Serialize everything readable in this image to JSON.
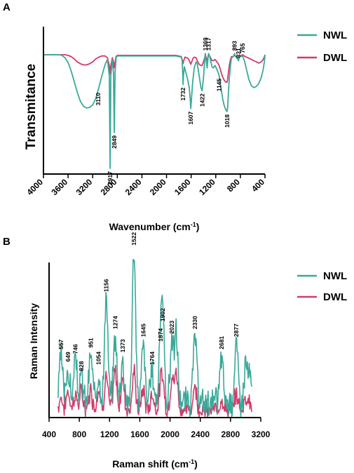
{
  "colors": {
    "NWL": "#3aa99a",
    "DWL": "#d23b6a",
    "axis": "#000000"
  },
  "chart_data": [
    {
      "type": "line",
      "panel_label": "A",
      "xlabel_prefix": "Wavenumber (cm",
      "xlabel_sup": "-1",
      "xlabel_suffix": ")",
      "ylabel": "Transmitance",
      "xlim": [
        4000,
        400
      ],
      "x_reversed": true,
      "xticks": [
        "4000",
        "3600",
        "3200",
        "2800",
        "2400",
        "2000",
        "1600",
        "1200",
        "800",
        "400"
      ],
      "y_axis_ticks": false,
      "legend_position": "right",
      "series": [
        {
          "name": "NWL",
          "x": [
            4000,
            3800,
            3750,
            3700,
            3650,
            3600,
            3550,
            3500,
            3450,
            3400,
            3350,
            3300,
            3250,
            3200,
            3150,
            3100,
            3050,
            3000,
            2960,
            2930,
            2917,
            2905,
            2880,
            2862,
            2849,
            2836,
            2820,
            2800,
            2600,
            2400,
            2200,
            2000,
            1850,
            1760,
            1745,
            1735,
            1732,
            1725,
            1710,
            1690,
            1660,
            1630,
            1615,
            1607,
            1595,
            1575,
            1550,
            1520,
            1500,
            1470,
            1440,
            1422,
            1400,
            1380,
            1369,
            1355,
            1340,
            1325,
            1317,
            1300,
            1280,
            1260,
            1240,
            1210,
            1180,
            1160,
            1145,
            1125,
            1105,
            1085,
            1065,
            1045,
            1030,
            1018,
            1008,
            995,
            980,
            960,
            945,
            925,
            905,
            893,
            880,
            860,
            840,
            831,
            820,
            800,
            780,
            765,
            740,
            700,
            660,
            620,
            580,
            540,
            500,
            460,
            430,
            410,
            400
          ],
          "y": [
            0,
            0,
            0,
            -0.01,
            -0.05,
            -0.13,
            -0.27,
            -0.45,
            -0.63,
            -0.78,
            -0.86,
            -0.89,
            -0.88,
            -0.84,
            -0.73,
            -0.55,
            -0.35,
            -0.17,
            -0.08,
            -0.35,
            -1.9,
            -0.35,
            -0.08,
            -0.3,
            -1.3,
            -0.3,
            -0.05,
            -0.02,
            -0.02,
            -0.02,
            -0.02,
            -0.02,
            -0.02,
            -0.04,
            -0.1,
            -0.35,
            -0.5,
            -0.35,
            -0.2,
            -0.28,
            -0.4,
            -0.55,
            -0.75,
            -0.9,
            -0.75,
            -0.45,
            -0.22,
            -0.12,
            -0.15,
            -0.35,
            -0.55,
            -0.6,
            -0.4,
            -0.1,
            0.02,
            -0.1,
            -0.22,
            -0.05,
            0.02,
            -0.02,
            -0.12,
            -0.2,
            -0.22,
            -0.18,
            -0.25,
            -0.3,
            -0.35,
            -0.5,
            -0.62,
            -0.75,
            -0.84,
            -0.9,
            -0.93,
            -0.95,
            -0.9,
            -0.65,
            -0.4,
            -0.18,
            -0.05,
            -0.04,
            -0.02,
            0.02,
            -0.03,
            -0.05,
            -0.08,
            -0.1,
            -0.05,
            -0.02,
            -0.03,
            -0.02,
            -0.08,
            -0.25,
            -0.42,
            -0.52,
            -0.55,
            -0.53,
            -0.48,
            -0.38,
            -0.25,
            -0.12,
            0
          ]
        },
        {
          "name": "DWL",
          "x": [
            4000,
            3700,
            3650,
            3600,
            3550,
            3500,
            3450,
            3400,
            3350,
            3300,
            3250,
            3200,
            3150,
            3100,
            3050,
            3000,
            2960,
            2930,
            2917,
            2905,
            2880,
            2862,
            2849,
            2836,
            2820,
            2800,
            2600,
            2400,
            2200,
            2000,
            1850,
            1760,
            1735,
            1732,
            1720,
            1700,
            1650,
            1620,
            1607,
            1590,
            1570,
            1550,
            1520,
            1500,
            1470,
            1440,
            1422,
            1400,
            1380,
            1369,
            1355,
            1340,
            1325,
            1317,
            1300,
            1280,
            1260,
            1240,
            1210,
            1180,
            1160,
            1145,
            1125,
            1105,
            1085,
            1065,
            1045,
            1030,
            1018,
            1008,
            995,
            980,
            960,
            945,
            925,
            905,
            893,
            880,
            860,
            840,
            831,
            820,
            800,
            780,
            765,
            740,
            700,
            660,
            620,
            580,
            540,
            500,
            460,
            430,
            410,
            400
          ],
          "y": [
            0,
            0,
            0,
            -0.01,
            -0.03,
            -0.07,
            -0.12,
            -0.15,
            -0.17,
            -0.17,
            -0.15,
            -0.12,
            -0.07,
            -0.04,
            -0.02,
            -0.02,
            -0.05,
            -0.18,
            -0.32,
            -0.18,
            -0.05,
            -0.12,
            -0.22,
            -0.12,
            -0.03,
            -0.01,
            -0.01,
            -0.01,
            -0.01,
            -0.01,
            -0.01,
            -0.03,
            -0.12,
            -0.15,
            -0.1,
            -0.04,
            -0.06,
            -0.12,
            -0.16,
            -0.12,
            -0.06,
            -0.04,
            -0.05,
            -0.1,
            -0.16,
            -0.18,
            -0.18,
            -0.12,
            -0.05,
            0,
            -0.05,
            -0.1,
            -0.03,
            0,
            -0.02,
            -0.06,
            -0.1,
            -0.1,
            -0.08,
            -0.12,
            -0.15,
            -0.18,
            -0.25,
            -0.32,
            -0.38,
            -0.42,
            -0.45,
            -0.46,
            -0.46,
            -0.42,
            -0.3,
            -0.18,
            -0.08,
            -0.03,
            -0.03,
            -0.02,
            0,
            -0.02,
            -0.04,
            -0.06,
            -0.08,
            -0.05,
            -0.02,
            -0.01,
            0,
            -0.02,
            -0.04,
            -0.06,
            -0.08,
            -0.1,
            -0.12,
            -0.14,
            -0.12,
            -0.08,
            -0.04,
            0
          ]
        }
      ],
      "annotations": [
        {
          "text": "3110",
          "x": 3110
        },
        {
          "text": "2917",
          "x": 2917
        },
        {
          "text": "2849",
          "x": 2849
        },
        {
          "text": "1732",
          "x": 1732
        },
        {
          "text": "1607",
          "x": 1607
        },
        {
          "text": "1422",
          "x": 1422
        },
        {
          "text": "1369",
          "x": 1369
        },
        {
          "text": "1317",
          "x": 1317
        },
        {
          "text": "1145",
          "x": 1145
        },
        {
          "text": "1018",
          "x": 1018
        },
        {
          "text": "893",
          "x": 893
        },
        {
          "text": "831",
          "x": 831
        },
        {
          "text": "765",
          "x": 765
        }
      ]
    },
    {
      "type": "line",
      "panel_label": "B",
      "xlabel_prefix": "Raman shift (cm",
      "xlabel_sup": "-1",
      "xlabel_suffix": ")",
      "ylabel": "Raman Intensity",
      "xlim": [
        400,
        3200
      ],
      "ylim": [
        0,
        1
      ],
      "xticks": [
        "400",
        "800",
        "1200",
        "1600",
        "2000",
        "2400",
        "2800",
        "3200"
      ],
      "y_axis_ticks": false,
      "legend_position": "right",
      "series": [
        {
          "name": "NWL",
          "peaks": [
            [
              557,
              0.3
            ],
            [
              649,
              0.22
            ],
            [
              746,
              0.27
            ],
            [
              828,
              0.16
            ],
            [
              951,
              0.31
            ],
            [
              1054,
              0.2
            ],
            [
              1156,
              0.67
            ],
            [
              1274,
              0.43
            ],
            [
              1373,
              0.28
            ],
            [
              1522,
              0.97
            ],
            [
              1645,
              0.38
            ],
            [
              1764,
              0.2
            ],
            [
              1874,
              0.35
            ],
            [
              1902,
              0.48
            ],
            [
              2023,
              0.4
            ],
            [
              2081,
              0.44
            ],
            [
              2330,
              0.43
            ],
            [
              2681,
              0.3
            ],
            [
              2877,
              0.38
            ],
            [
              3000,
              0.24
            ],
            [
              3050,
              0.16
            ]
          ],
          "baseline": 0.1
        },
        {
          "name": "DWL",
          "peaks": [
            [
              557,
              0.08
            ],
            [
              649,
              0.12
            ],
            [
              746,
              0.1
            ],
            [
              828,
              0.11
            ],
            [
              951,
              0.13
            ],
            [
              1054,
              0.14
            ],
            [
              1156,
              0.22
            ],
            [
              1274,
              0.25
            ],
            [
              1373,
              0.2
            ],
            [
              1522,
              0.24
            ],
            [
              1645,
              0.13
            ],
            [
              1764,
              0.1
            ],
            [
              1874,
              0.12
            ],
            [
              1902,
              0.17
            ],
            [
              2023,
              0.19
            ],
            [
              2081,
              0.24
            ],
            [
              2330,
              0.16
            ],
            [
              2681,
              0.08
            ],
            [
              2877,
              0.1
            ],
            [
              3000,
              0.08
            ],
            [
              3050,
              0.05
            ]
          ],
          "baseline": 0.05
        }
      ],
      "annotations": [
        {
          "text": "557",
          "x": 557
        },
        {
          "text": "649",
          "x": 649
        },
        {
          "text": "746",
          "x": 746
        },
        {
          "text": "828",
          "x": 828
        },
        {
          "text": "951",
          "x": 951
        },
        {
          "text": "1054",
          "x": 1054
        },
        {
          "text": "1156",
          "x": 1156
        },
        {
          "text": "1274",
          "x": 1274
        },
        {
          "text": "1373",
          "x": 1373
        },
        {
          "text": "1522",
          "x": 1522
        },
        {
          "text": "1645",
          "x": 1645
        },
        {
          "text": "1764",
          "x": 1764
        },
        {
          "text": "1874",
          "x": 1874
        },
        {
          "text": "1902",
          "x": 1902
        },
        {
          "text": "2023",
          "x": 2023
        },
        {
          "text": "2330",
          "x": 2330
        },
        {
          "text": "2681",
          "x": 2681
        },
        {
          "text": "2877",
          "x": 2877
        }
      ]
    }
  ]
}
